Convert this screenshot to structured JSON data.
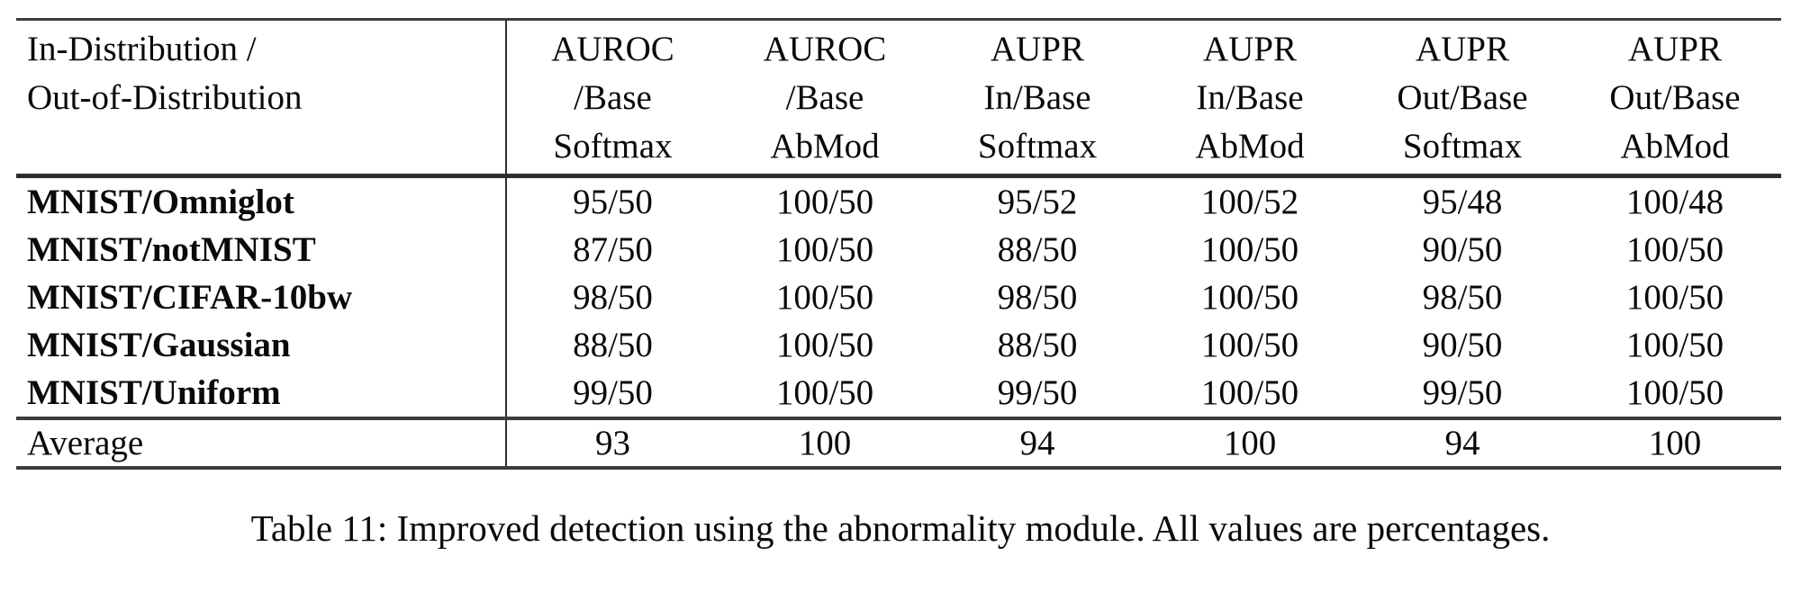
{
  "table": {
    "columns": [
      {
        "label": "In-Distribution /\nOut-of-Distribution"
      },
      {
        "label": "AUROC\n/Base\nSoftmax"
      },
      {
        "label": "AUROC\n/Base\nAbMod"
      },
      {
        "label": "AUPR\nIn/Base\nSoftmax"
      },
      {
        "label": "AUPR\nIn/Base\nAbMod"
      },
      {
        "label": "AUPR\nOut/Base\nSoftmax"
      },
      {
        "label": "AUPR\nOut/Base\nAbMod"
      }
    ],
    "rows": [
      {
        "label": "MNIST/Omniglot",
        "values": [
          "95/50",
          "100/50",
          "95/52",
          "100/52",
          "95/48",
          "100/48"
        ]
      },
      {
        "label": "MNIST/notMNIST",
        "values": [
          "87/50",
          "100/50",
          "88/50",
          "100/50",
          "90/50",
          "100/50"
        ]
      },
      {
        "label": "MNIST/CIFAR-10bw",
        "values": [
          "98/50",
          "100/50",
          "98/50",
          "100/50",
          "98/50",
          "100/50"
        ]
      },
      {
        "label": "MNIST/Gaussian",
        "values": [
          "88/50",
          "100/50",
          "88/50",
          "100/50",
          "90/50",
          "100/50"
        ]
      },
      {
        "label": "MNIST/Uniform",
        "values": [
          "99/50",
          "100/50",
          "99/50",
          "100/50",
          "99/50",
          "100/50"
        ]
      }
    ],
    "summary": {
      "label": "Average",
      "values": [
        "93",
        "100",
        "94",
        "100",
        "94",
        "100"
      ]
    }
  },
  "caption": "Table 11: Improved detection using the abnormality module. All values are percentages.",
  "colors": {
    "rule": "#3c3c3c",
    "text": "#0a0a0a",
    "background": "#ffffff"
  }
}
